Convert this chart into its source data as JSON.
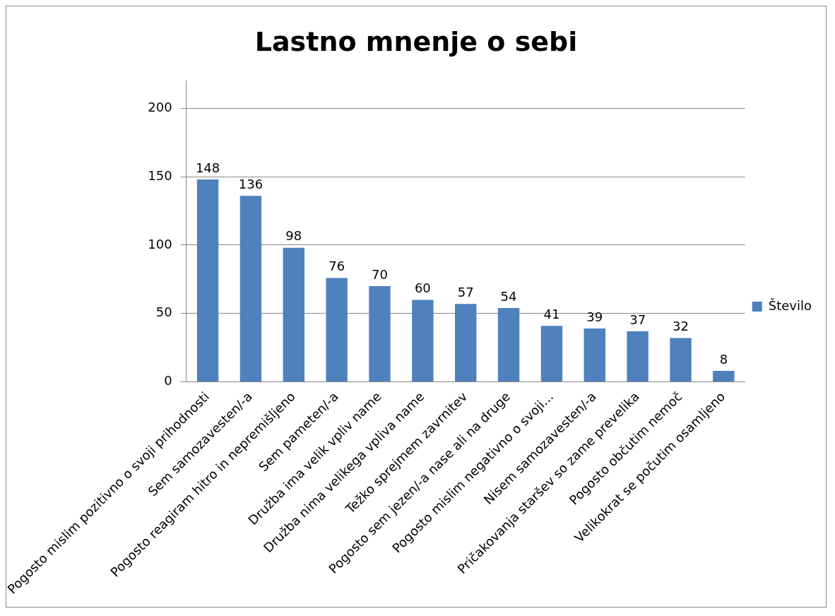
{
  "chart_data": {
    "type": "bar",
    "title": "Lastno mnenje o sebi",
    "categories": [
      "Pogosto mislim pozitivno o svoji prihodnosti",
      "Sem samozavesten/-a",
      "Pogosto reagiram hitro in nepremišljeno",
      "Sem pameten/-a",
      "Družba ima velik vpliv name",
      "Družba nima velikega vpliva name",
      "Težko sprejmem zavrnitev",
      "Pogosto sem jezen/-a nase ali na druge",
      "Pogosto mislim negativno o svoji...",
      "Nisem samozavesten/-a",
      "Pričakovanja staršev so zame prevelika",
      "Pogosto občutim nemoč",
      "Velikokrat se počutim osamljeno"
    ],
    "series": [
      {
        "name": "Število",
        "color": "#4f81bd",
        "values": [
          148,
          136,
          98,
          76,
          70,
          60,
          57,
          54,
          41,
          39,
          37,
          32,
          8
        ]
      }
    ],
    "ylim": [
      0,
      220
    ],
    "yticks": [
      0,
      50,
      100,
      150,
      200
    ],
    "grid": "y",
    "legend": "right",
    "data_labels": true
  }
}
